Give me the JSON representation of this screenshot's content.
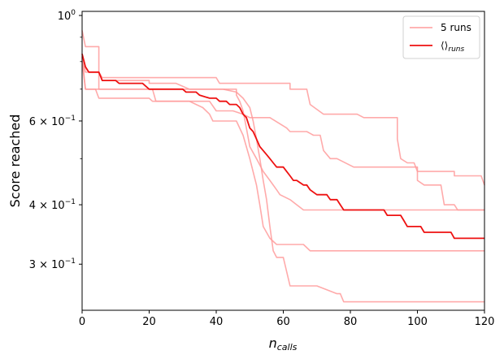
{
  "chart_data": {
    "type": "line",
    "xlabel": "n_calls",
    "ylabel": "Score reached",
    "xlim": [
      0,
      120
    ],
    "ylim": [
      0.24,
      1.02
    ],
    "yscale": "log",
    "x_ticks": [
      0,
      20,
      40,
      60,
      80,
      100,
      120
    ],
    "y_ticks": [
      {
        "value": 1.0,
        "base": "10",
        "exp": "0",
        "mult": ""
      },
      {
        "value": 0.6,
        "base": "10",
        "exp": "−1",
        "mult": "6 × "
      },
      {
        "value": 0.4,
        "base": "10",
        "exp": "−1",
        "mult": "4 × "
      },
      {
        "value": 0.3,
        "base": "10",
        "exp": "−1",
        "mult": "3 × "
      }
    ],
    "legend_position": "top-right",
    "legend": {
      "runs_label": "5 runs",
      "mean_label": "⟨⟩",
      "mean_subscript": "runs"
    },
    "colors": {
      "runs": "#ff9b9b",
      "mean": "#ee1111"
    },
    "series": [
      {
        "name": "5 runs",
        "style": "run",
        "points": [
          [
            0,
            0.93
          ],
          [
            1,
            0.86
          ],
          [
            5,
            0.86
          ],
          [
            5,
            0.7
          ],
          [
            46,
            0.7
          ],
          [
            46,
            0.68
          ],
          [
            47,
            0.66
          ],
          [
            48,
            0.63
          ],
          [
            49,
            0.58
          ],
          [
            50,
            0.53
          ],
          [
            52,
            0.5
          ],
          [
            54,
            0.47
          ],
          [
            56,
            0.45
          ],
          [
            58,
            0.43
          ],
          [
            59,
            0.42
          ],
          [
            62,
            0.41
          ],
          [
            64,
            0.4
          ],
          [
            66,
            0.39
          ],
          [
            76,
            0.39
          ],
          [
            78,
            0.39
          ],
          [
            80,
            0.39
          ],
          [
            90,
            0.39
          ],
          [
            92,
            0.39
          ],
          [
            93,
            0.39
          ],
          [
            100,
            0.39
          ],
          [
            101,
            0.39
          ],
          [
            102,
            0.39
          ],
          [
            120,
            0.39
          ]
        ]
      },
      {
        "name": "",
        "style": "run",
        "points": [
          [
            0,
            0.81
          ],
          [
            1,
            0.76
          ],
          [
            5,
            0.76
          ],
          [
            6,
            0.73
          ],
          [
            20,
            0.73
          ],
          [
            20,
            0.72
          ],
          [
            25,
            0.72
          ],
          [
            28,
            0.72
          ],
          [
            32,
            0.7
          ],
          [
            38,
            0.7
          ],
          [
            42,
            0.7
          ],
          [
            46,
            0.69
          ],
          [
            48,
            0.67
          ],
          [
            50,
            0.64
          ],
          [
            51,
            0.6
          ],
          [
            52,
            0.55
          ],
          [
            53,
            0.5
          ],
          [
            54,
            0.45
          ],
          [
            55,
            0.41
          ],
          [
            56,
            0.36
          ],
          [
            57,
            0.32
          ],
          [
            58,
            0.31
          ],
          [
            58,
            0.31
          ],
          [
            60,
            0.31
          ],
          [
            62,
            0.27
          ],
          [
            70,
            0.27
          ],
          [
            76,
            0.26
          ],
          [
            77,
            0.26
          ],
          [
            78,
            0.25
          ],
          [
            80,
            0.25
          ],
          [
            90,
            0.25
          ],
          [
            100,
            0.25
          ],
          [
            101,
            0.25
          ],
          [
            103,
            0.25
          ],
          [
            120,
            0.25
          ]
        ]
      },
      {
        "name": "",
        "style": "run",
        "points": [
          [
            0,
            0.79
          ],
          [
            2,
            0.76
          ],
          [
            5,
            0.76
          ],
          [
            6,
            0.74
          ],
          [
            20,
            0.74
          ],
          [
            21,
            0.74
          ],
          [
            33,
            0.74
          ],
          [
            40,
            0.74
          ],
          [
            41,
            0.72
          ],
          [
            62,
            0.72
          ],
          [
            62,
            0.7
          ],
          [
            67,
            0.7
          ],
          [
            68,
            0.65
          ],
          [
            72,
            0.62
          ],
          [
            81,
            0.62
          ],
          [
            82,
            0.62
          ],
          [
            84,
            0.61
          ],
          [
            94,
            0.61
          ],
          [
            94,
            0.55
          ],
          [
            95,
            0.5
          ],
          [
            97,
            0.49
          ],
          [
            99,
            0.49
          ],
          [
            100,
            0.47
          ],
          [
            111,
            0.47
          ],
          [
            111,
            0.46
          ],
          [
            112,
            0.46
          ],
          [
            119,
            0.46
          ],
          [
            120,
            0.44
          ]
        ]
      },
      {
        "name": "",
        "style": "run",
        "points": [
          [
            0,
            0.8
          ],
          [
            1,
            0.7
          ],
          [
            4,
            0.7
          ],
          [
            5,
            0.67
          ],
          [
            20,
            0.67
          ],
          [
            21,
            0.66
          ],
          [
            32,
            0.66
          ],
          [
            38,
            0.66
          ],
          [
            40,
            0.63
          ],
          [
            42,
            0.63
          ],
          [
            45,
            0.63
          ],
          [
            48,
            0.62
          ],
          [
            50,
            0.61
          ],
          [
            52,
            0.61
          ],
          [
            54,
            0.61
          ],
          [
            55,
            0.61
          ],
          [
            56,
            0.61
          ],
          [
            61,
            0.58
          ],
          [
            62,
            0.57
          ],
          [
            64,
            0.57
          ],
          [
            66,
            0.57
          ],
          [
            67,
            0.57
          ],
          [
            69,
            0.56
          ],
          [
            71,
            0.56
          ],
          [
            72,
            0.52
          ],
          [
            74,
            0.5
          ],
          [
            76,
            0.5
          ],
          [
            81,
            0.48
          ],
          [
            82,
            0.48
          ],
          [
            100,
            0.48
          ],
          [
            100,
            0.45
          ],
          [
            102,
            0.44
          ],
          [
            107,
            0.44
          ],
          [
            108,
            0.4
          ],
          [
            111,
            0.4
          ],
          [
            112,
            0.39
          ],
          [
            118,
            0.39
          ],
          [
            120,
            0.39
          ]
        ]
      },
      {
        "name": "",
        "style": "run",
        "points": [
          [
            0,
            0.82
          ],
          [
            1,
            0.7
          ],
          [
            20,
            0.7
          ],
          [
            20,
            0.7
          ],
          [
            21,
            0.7
          ],
          [
            22,
            0.66
          ],
          [
            24,
            0.66
          ],
          [
            32,
            0.66
          ],
          [
            36,
            0.64
          ],
          [
            38,
            0.62
          ],
          [
            39,
            0.6
          ],
          [
            40,
            0.6
          ],
          [
            43,
            0.6
          ],
          [
            46,
            0.6
          ],
          [
            48,
            0.56
          ],
          [
            50,
            0.5
          ],
          [
            52,
            0.44
          ],
          [
            53,
            0.4
          ],
          [
            54,
            0.36
          ],
          [
            56,
            0.34
          ],
          [
            58,
            0.33
          ],
          [
            60,
            0.33
          ],
          [
            61,
            0.33
          ],
          [
            66,
            0.33
          ],
          [
            68,
            0.32
          ],
          [
            72,
            0.32
          ],
          [
            78,
            0.32
          ],
          [
            80,
            0.32
          ],
          [
            90,
            0.32
          ],
          [
            100,
            0.32
          ],
          [
            120,
            0.32
          ]
        ]
      },
      {
        "name": "⟨⟩runs",
        "style": "mean",
        "points": [
          [
            0,
            0.83
          ],
          [
            1,
            0.78
          ],
          [
            2,
            0.76
          ],
          [
            5,
            0.76
          ],
          [
            6,
            0.73
          ],
          [
            10,
            0.73
          ],
          [
            11,
            0.72
          ],
          [
            18,
            0.72
          ],
          [
            20,
            0.7
          ],
          [
            22,
            0.7
          ],
          [
            30,
            0.7
          ],
          [
            31,
            0.69
          ],
          [
            34,
            0.69
          ],
          [
            35,
            0.68
          ],
          [
            38,
            0.67
          ],
          [
            39,
            0.67
          ],
          [
            40,
            0.67
          ],
          [
            41,
            0.66
          ],
          [
            43,
            0.66
          ],
          [
            44,
            0.65
          ],
          [
            46,
            0.65
          ],
          [
            47,
            0.64
          ],
          [
            48,
            0.62
          ],
          [
            49,
            0.61
          ],
          [
            50,
            0.58
          ],
          [
            51,
            0.57
          ],
          [
            52,
            0.55
          ],
          [
            53,
            0.53
          ],
          [
            54,
            0.52
          ],
          [
            55,
            0.51
          ],
          [
            56,
            0.5
          ],
          [
            57,
            0.49
          ],
          [
            58,
            0.48
          ],
          [
            60,
            0.48
          ],
          [
            61,
            0.47
          ],
          [
            62,
            0.46
          ],
          [
            63,
            0.45
          ],
          [
            64,
            0.45
          ],
          [
            66,
            0.44
          ],
          [
            67,
            0.44
          ],
          [
            68,
            0.43
          ],
          [
            70,
            0.42
          ],
          [
            72,
            0.42
          ],
          [
            73,
            0.42
          ],
          [
            74,
            0.41
          ],
          [
            76,
            0.41
          ],
          [
            77,
            0.4
          ],
          [
            78,
            0.39
          ],
          [
            80,
            0.39
          ],
          [
            82,
            0.39
          ],
          [
            83,
            0.39
          ],
          [
            88,
            0.39
          ],
          [
            90,
            0.39
          ],
          [
            91,
            0.38
          ],
          [
            94,
            0.38
          ],
          [
            95,
            0.38
          ],
          [
            96,
            0.37
          ],
          [
            97,
            0.36
          ],
          [
            100,
            0.36
          ],
          [
            101,
            0.36
          ],
          [
            102,
            0.35
          ],
          [
            110,
            0.35
          ],
          [
            111,
            0.34
          ],
          [
            116,
            0.34
          ],
          [
            117,
            0.34
          ],
          [
            118,
            0.34
          ],
          [
            119,
            0.34
          ],
          [
            120,
            0.34
          ]
        ]
      }
    ]
  }
}
